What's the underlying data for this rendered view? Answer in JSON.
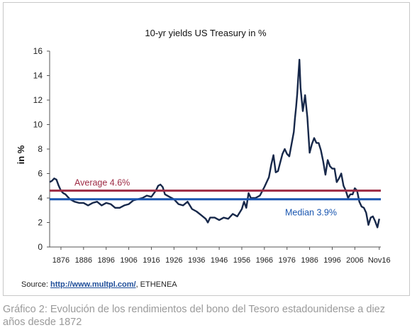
{
  "chart_data": {
    "type": "line",
    "title": "10-yr yields US Treasury in %",
    "ylabel": "in %",
    "xlabel": "",
    "ylim": [
      0,
      16
    ],
    "xlim": [
      1871,
      2017.5
    ],
    "yticks": [
      0,
      2,
      4,
      6,
      8,
      10,
      12,
      14,
      16
    ],
    "xtick_labels": [
      "1876",
      "1886",
      "1896",
      "1906",
      "1916",
      "1926",
      "1936",
      "1946",
      "1956",
      "1966",
      "1976",
      "1986",
      "1996",
      "2006",
      "Nov16"
    ],
    "xtick_values": [
      1876,
      1886,
      1896,
      1906,
      1916,
      1926,
      1936,
      1946,
      1956,
      1966,
      1976,
      1986,
      1996,
      2006,
      2016.8
    ],
    "grid": false,
    "series": [
      {
        "color": "#17284a",
        "x": [
          1871,
          1872,
          1873,
          1874,
          1875,
          1876,
          1877,
          1878,
          1879,
          1880,
          1882,
          1884,
          1886,
          1888,
          1890,
          1892,
          1894,
          1896,
          1898,
          1900,
          1902,
          1904,
          1906,
          1908,
          1910,
          1912,
          1914,
          1916,
          1918,
          1919,
          1920,
          1921,
          1922,
          1924,
          1926,
          1928,
          1930,
          1932,
          1934,
          1936,
          1938,
          1940,
          1941,
          1942,
          1944,
          1946,
          1948,
          1950,
          1952,
          1954,
          1956,
          1957,
          1958,
          1959,
          1960,
          1962,
          1964,
          1966,
          1968,
          1969,
          1970,
          1971,
          1972,
          1973,
          1974,
          1975,
          1976,
          1977,
          1978,
          1979,
          1979.5,
          1980,
          1980.5,
          1981,
          1981.5,
          1982,
          1983,
          1984,
          1985,
          1986,
          1987,
          1988,
          1989,
          1990,
          1991,
          1992,
          1993,
          1994,
          1995,
          1996,
          1997,
          1998,
          1999,
          2000,
          2001,
          2002,
          2003,
          2004,
          2005,
          2006,
          2007,
          2008,
          2009,
          2010,
          2011,
          2012,
          2013,
          2014,
          2015,
          2016,
          2016.8
        ],
        "y": [
          5.3,
          5.4,
          5.6,
          5.5,
          5.0,
          4.6,
          4.4,
          4.3,
          4.1,
          3.9,
          3.7,
          3.6,
          3.6,
          3.4,
          3.6,
          3.7,
          3.4,
          3.6,
          3.5,
          3.2,
          3.2,
          3.4,
          3.5,
          3.8,
          3.9,
          4.0,
          4.2,
          4.1,
          4.6,
          5.0,
          5.1,
          4.9,
          4.3,
          4.1,
          3.9,
          3.5,
          3.4,
          3.7,
          3.1,
          2.9,
          2.6,
          2.3,
          2.0,
          2.4,
          2.4,
          2.2,
          2.4,
          2.3,
          2.7,
          2.5,
          3.1,
          3.7,
          3.2,
          4.4,
          4.0,
          4.0,
          4.2,
          4.9,
          5.7,
          6.7,
          7.5,
          6.1,
          6.2,
          6.9,
          7.6,
          8.0,
          7.6,
          7.4,
          8.4,
          9.4,
          10.5,
          11.4,
          12.5,
          13.9,
          15.3,
          13.0,
          11.1,
          12.4,
          10.6,
          7.7,
          8.4,
          8.9,
          8.5,
          8.5,
          7.9,
          7.0,
          5.9,
          7.1,
          6.6,
          6.4,
          6.4,
          5.3,
          5.6,
          6.0,
          5.0,
          4.6,
          4.0,
          4.3,
          4.3,
          4.8,
          4.6,
          3.7,
          3.3,
          3.2,
          2.8,
          1.8,
          2.4,
          2.5,
          2.1,
          1.6,
          2.3
        ]
      }
    ],
    "annotations": [
      {
        "label": "Average 4.6%",
        "value": 4.6,
        "color": "#9e2b45"
      },
      {
        "label": "Median 3.9%",
        "value": 3.9,
        "color": "#1a56b0"
      }
    ]
  },
  "source": {
    "prefix": "Source: ",
    "link": "http://www.multpl.com/",
    "suffix": ", ETHENEA"
  },
  "caption": "Gráfico 2: Evolución de los rendimientos del bono del Tesoro estadounidense a diez años desde 1872"
}
